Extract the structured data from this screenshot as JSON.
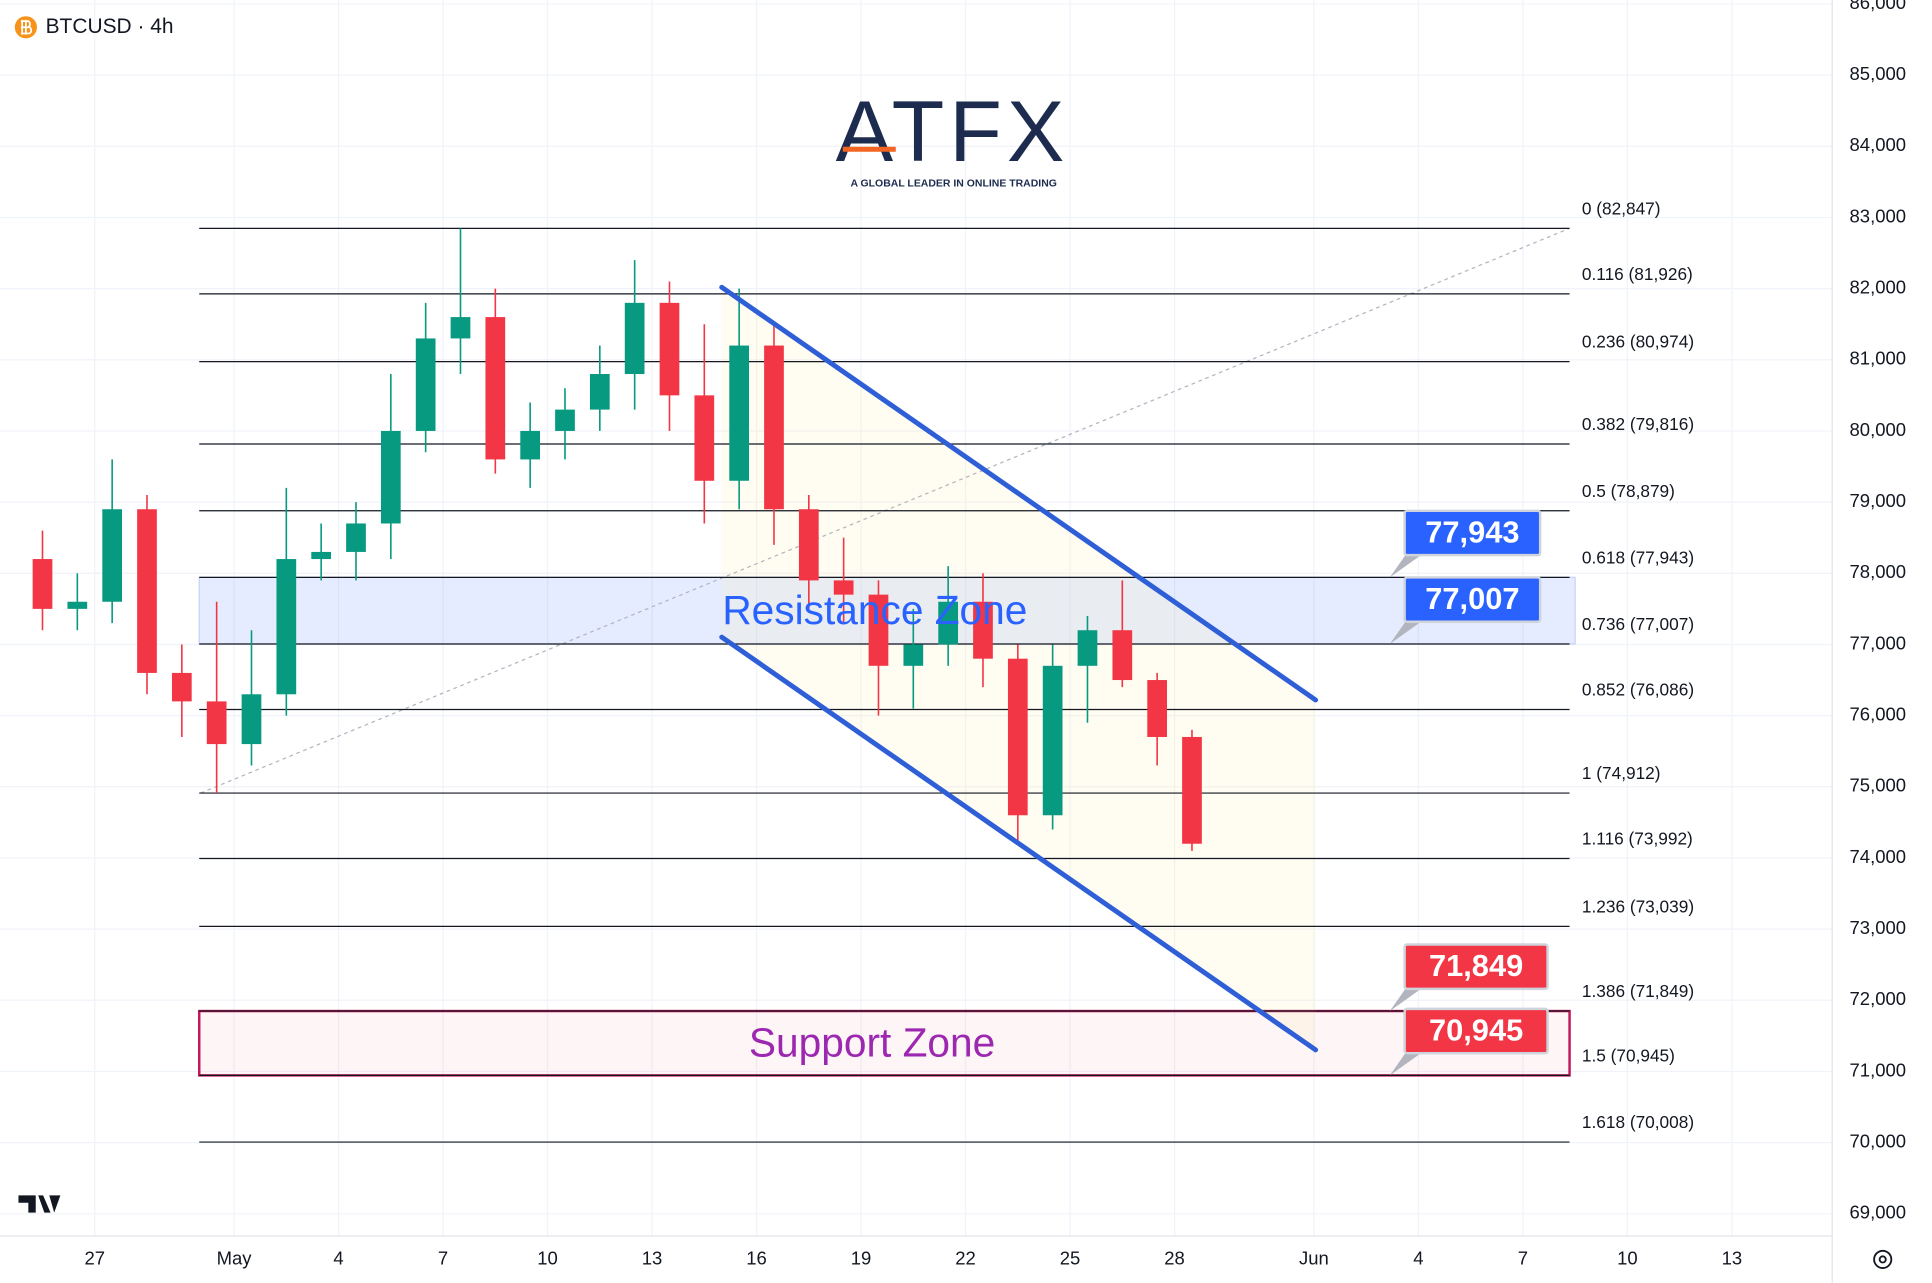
{
  "chart_data": {
    "type": "candlestick",
    "title": "BTCUSD · 4h",
    "logo": {
      "name": "ATFX",
      "tagline": "A GLOBAL LEADER IN ONLINE TRADING"
    },
    "x": [
      -1.5,
      -0.5,
      0.5,
      1.5,
      2.5,
      3.5,
      4.5,
      5.5,
      6.5,
      7.5,
      8.5,
      9.5,
      10.5,
      11.5,
      12.5,
      13.5,
      14.5,
      15.5,
      16.5,
      17.5,
      18.5,
      19.5,
      20.5,
      21.5,
      22.5,
      23.5,
      24.5,
      25.5,
      26.5,
      27.5,
      28.5,
      29.5,
      30.5,
      31.5
    ],
    "open": [
      78200,
      77500,
      77600,
      78900,
      76600,
      76200,
      75600,
      76300,
      78200,
      78300,
      78700,
      80000,
      81300,
      81600,
      79600,
      80000,
      80300,
      80800,
      81800,
      80500,
      79300,
      81200,
      78900,
      77900,
      77700,
      76700,
      77000,
      77600,
      76800,
      74600,
      76700,
      77200,
      76500,
      75700
    ],
    "high": [
      78600,
      78000,
      79600,
      79100,
      77000,
      77600,
      77200,
      79200,
      78700,
      79000,
      80800,
      81800,
      82847,
      82000,
      80400,
      80600,
      81200,
      82400,
      82100,
      81500,
      82000,
      81500,
      79100,
      78500,
      77900,
      77500,
      78100,
      78000,
      77000,
      77000,
      77400,
      77900,
      76600,
      75800
    ],
    "low": [
      77200,
      77200,
      77300,
      76300,
      75700,
      74912,
      75300,
      76000,
      77900,
      77900,
      78200,
      79700,
      80800,
      79400,
      79200,
      79600,
      80000,
      80300,
      80000,
      78700,
      78900,
      78400,
      77500,
      77300,
      76000,
      76100,
      76700,
      76400,
      74200,
      74400,
      75900,
      76400,
      75300,
      74100
    ],
    "close": [
      77500,
      77600,
      78900,
      76600,
      76200,
      75600,
      76300,
      78200,
      78300,
      78700,
      80000,
      81300,
      81600,
      79600,
      80000,
      80300,
      80800,
      81800,
      80500,
      79300,
      81200,
      78900,
      77900,
      77700,
      76700,
      77000,
      77600,
      76800,
      74600,
      76700,
      77200,
      76500,
      75700,
      74200
    ],
    "up_color": "#089981",
    "down_color": "#f23645",
    "xlim": [
      -2.72,
      49.88
    ],
    "xticks": [
      {
        "value": 0,
        "label": "27"
      },
      {
        "value": 4,
        "label": "May"
      },
      {
        "value": 7,
        "label": "4"
      },
      {
        "value": 10,
        "label": "7"
      },
      {
        "value": 13,
        "label": "10"
      },
      {
        "value": 16,
        "label": "13"
      },
      {
        "value": 19,
        "label": "16"
      },
      {
        "value": 22,
        "label": "19"
      },
      {
        "value": 25,
        "label": "22"
      },
      {
        "value": 28,
        "label": "25"
      },
      {
        "value": 31,
        "label": "28"
      },
      {
        "value": 35,
        "label": "Jun"
      },
      {
        "value": 38,
        "label": "4"
      },
      {
        "value": 41,
        "label": "7"
      },
      {
        "value": 44,
        "label": "10"
      },
      {
        "value": 47,
        "label": "13"
      }
    ],
    "ylim": [
      68688,
      86053
    ],
    "yticks": [
      {
        "value": 69000,
        "label": "69,000"
      },
      {
        "value": 70000,
        "label": "70,000"
      },
      {
        "value": 71000,
        "label": "71,000"
      },
      {
        "value": 72000,
        "label": "72,000"
      },
      {
        "value": 73000,
        "label": "73,000"
      },
      {
        "value": 74000,
        "label": "74,000"
      },
      {
        "value": 75000,
        "label": "75,000"
      },
      {
        "value": 76000,
        "label": "76,000"
      },
      {
        "value": 77000,
        "label": "77,000"
      },
      {
        "value": 78000,
        "label": "78,000"
      },
      {
        "value": 79000,
        "label": "79,000"
      },
      {
        "value": 80000,
        "label": "80,000"
      },
      {
        "value": 81000,
        "label": "81,000"
      },
      {
        "value": 82000,
        "label": "82,000"
      },
      {
        "value": 83000,
        "label": "83,000"
      },
      {
        "value": 84000,
        "label": "84,000"
      },
      {
        "value": 85000,
        "label": "85,000"
      },
      {
        "value": 86000,
        "label": "86,000"
      }
    ],
    "grid": true,
    "fib_x": [
      3.0,
      42.34
    ],
    "fib_levels": [
      {
        "value": 82847,
        "label": "0 (82,847)"
      },
      {
        "value": 81926,
        "label": "0.116 (81,926)"
      },
      {
        "value": 80974,
        "label": "0.236 (80,974)"
      },
      {
        "value": 79816,
        "label": "0.382 (79,816)"
      },
      {
        "value": 78879,
        "label": "0.5 (78,879)"
      },
      {
        "value": 77943,
        "label": "0.618 (77,943)"
      },
      {
        "value": 77007,
        "label": "0.736 (77,007)"
      },
      {
        "value": 76086,
        "label": "0.852 (76,086)"
      },
      {
        "value": 74912,
        "label": "1 (74,912)"
      },
      {
        "value": 73992,
        "label": "1.116 (73,992)"
      },
      {
        "value": 73039,
        "label": "1.236 (73,039)"
      },
      {
        "value": 71849,
        "label": "1.386 (71,849)"
      },
      {
        "value": 70945,
        "label": "1.5 (70,945)"
      },
      {
        "value": 70008,
        "label": "1.618 (70,008)"
      }
    ],
    "fib_trend": {
      "x": [
        3.04,
        42.34
      ],
      "y": [
        74912,
        82847
      ]
    },
    "zones": [
      {
        "label": "Resistance Zone",
        "low": 77007,
        "high": 77943,
        "x": [
          3.0,
          42.5
        ],
        "color": "#2962ff"
      },
      {
        "label": "Support Zone",
        "low": 70945,
        "high": 71849,
        "x": [
          3.0,
          42.34
        ],
        "color": "#9c27b0"
      }
    ],
    "channel": [
      {
        "x": [
          18.0,
          35.05
        ],
        "y": [
          82019,
          76220
        ]
      },
      {
        "x": [
          18.0,
          35.05
        ],
        "y": [
          77103,
          71303
        ]
      }
    ],
    "channel_color": "#2f5fd6",
    "price_labels": [
      {
        "value": 77943,
        "label": "77,943",
        "color": "#2962ff"
      },
      {
        "value": 77007,
        "label": "77,007",
        "color": "#2962ff"
      },
      {
        "value": 71849,
        "label": "71,849",
        "color": "#f23645"
      },
      {
        "value": 70945,
        "label": "70,945",
        "color": "#f23645"
      }
    ]
  }
}
